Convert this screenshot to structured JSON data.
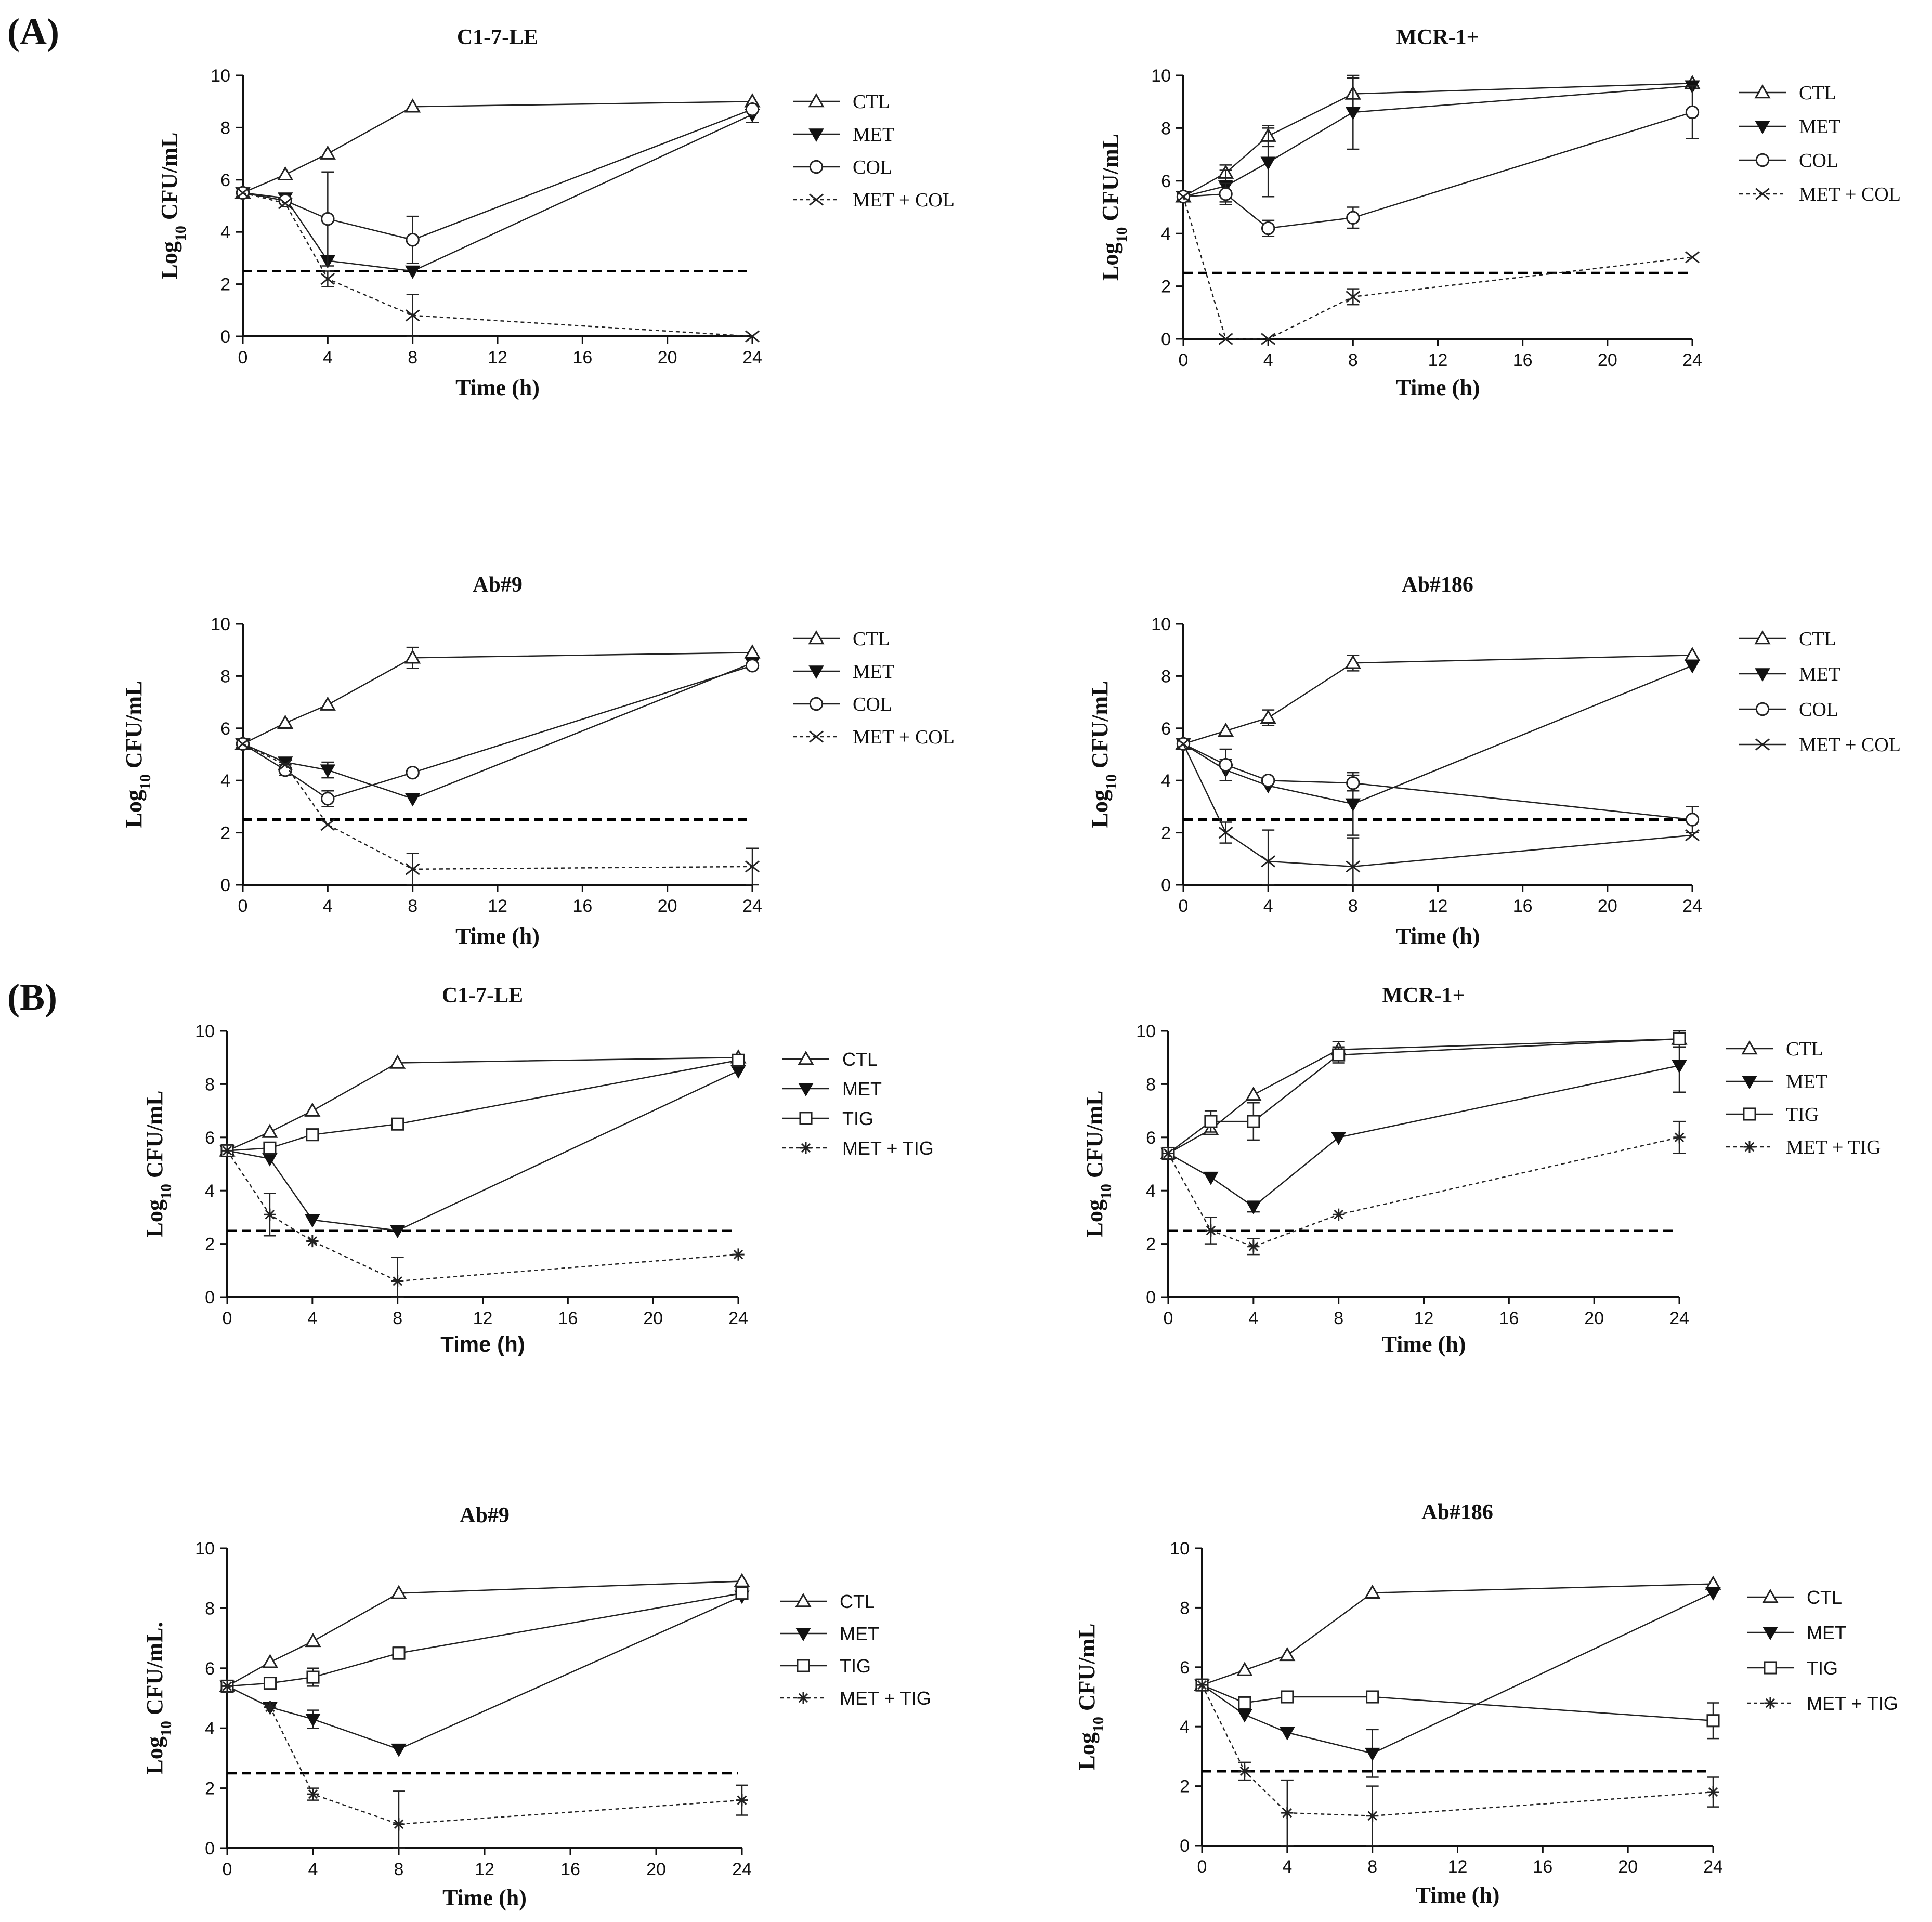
{
  "figure": {
    "panel_labels": {
      "A": "(A)",
      "B": "(B)"
    }
  },
  "chart_data": [
    {
      "type": "line",
      "panel": "A",
      "title": "C1-7-LE",
      "xlabel": "Time (h)",
      "ylabel": "Log10 CFU/mL",
      "ylabel_parts": {
        "base": "Log",
        "sub": "10",
        "rest": " CFU/mL"
      },
      "xticks": [
        0,
        4,
        8,
        12,
        16,
        20,
        24
      ],
      "yticks": [
        0,
        2,
        4,
        6,
        8,
        10
      ],
      "xlim": [
        0,
        24
      ],
      "ylim": [
        0,
        10
      ],
      "reference_line": 2.5,
      "legend_position": "right",
      "series": [
        {
          "name": "CTL",
          "marker": "triangle-open",
          "dashed": false,
          "x": [
            0,
            2,
            4,
            8,
            24
          ],
          "y": [
            5.5,
            6.2,
            7.0,
            8.8,
            9.0
          ],
          "err": [
            0,
            0,
            0,
            0,
            0
          ]
        },
        {
          "name": "MET",
          "marker": "triangle-down-filled",
          "dashed": false,
          "x": [
            0,
            2,
            4,
            8,
            24
          ],
          "y": [
            5.5,
            5.3,
            2.9,
            2.5,
            8.5
          ],
          "err": [
            0,
            0,
            0,
            0,
            0.3
          ]
        },
        {
          "name": "COL",
          "marker": "circle-open",
          "dashed": false,
          "x": [
            0,
            2,
            4,
            8,
            24
          ],
          "y": [
            5.5,
            5.2,
            4.5,
            3.7,
            8.7
          ],
          "err": [
            0,
            0,
            1.8,
            0.9,
            0
          ]
        },
        {
          "name": "MET + COL",
          "marker": "x",
          "dashed": true,
          "x": [
            0,
            2,
            4,
            8,
            24
          ],
          "y": [
            5.5,
            5.1,
            2.2,
            0.8,
            0.0
          ],
          "err": [
            0,
            0,
            0.3,
            0.8,
            0
          ]
        }
      ]
    },
    {
      "type": "line",
      "panel": "A",
      "title": "MCR-1+",
      "xlabel": "Time (h)",
      "ylabel": "Log10 CFU/mL",
      "ylabel_parts": {
        "base": "Log",
        "sub": "10",
        "rest": " CFU/mL"
      },
      "xticks": [
        0,
        4,
        8,
        12,
        16,
        20,
        24
      ],
      "yticks": [
        0,
        2,
        4,
        6,
        8,
        10
      ],
      "xlim": [
        0,
        24
      ],
      "ylim": [
        0,
        10
      ],
      "reference_line": 2.5,
      "legend_position": "right",
      "series": [
        {
          "name": "CTL",
          "marker": "triangle-open",
          "dashed": false,
          "x": [
            0,
            2,
            4,
            8,
            24
          ],
          "y": [
            5.4,
            6.3,
            7.7,
            9.3,
            9.7
          ],
          "err": [
            0,
            0.3,
            0.4,
            0.6,
            0
          ]
        },
        {
          "name": "MET",
          "marker": "triangle-down-filled",
          "dashed": false,
          "x": [
            0,
            2,
            4,
            8,
            24
          ],
          "y": [
            5.4,
            5.8,
            6.7,
            8.6,
            9.6
          ],
          "err": [
            0,
            0.6,
            1.3,
            1.4,
            0
          ]
        },
        {
          "name": "COL",
          "marker": "circle-open",
          "dashed": false,
          "x": [
            0,
            2,
            4,
            8,
            24
          ],
          "y": [
            5.4,
            5.5,
            4.2,
            4.6,
            8.6
          ],
          "err": [
            0,
            0.4,
            0.3,
            0.4,
            1.0
          ]
        },
        {
          "name": "MET + COL",
          "marker": "x",
          "dashed": true,
          "x": [
            0,
            2,
            4,
            8,
            24
          ],
          "y": [
            5.4,
            0.0,
            0.0,
            1.6,
            3.1
          ],
          "err": [
            0,
            0,
            0,
            0.3,
            0
          ]
        }
      ]
    },
    {
      "type": "line",
      "panel": "A",
      "title": "Ab#9",
      "xlabel": "Time (h)",
      "ylabel": "Log10 CFU/mL",
      "ylabel_parts": {
        "base": "Log",
        "sub": "10",
        "rest": " CFU/mL"
      },
      "xticks": [
        0,
        4,
        8,
        12,
        16,
        20,
        24
      ],
      "yticks": [
        0,
        2,
        4,
        6,
        8,
        10
      ],
      "xlim": [
        0,
        24
      ],
      "ylim": [
        0,
        10
      ],
      "reference_line": 2.5,
      "legend_position": "right",
      "series": [
        {
          "name": "CTL",
          "marker": "triangle-open",
          "dashed": false,
          "x": [
            0,
            2,
            4,
            8,
            24
          ],
          "y": [
            5.4,
            6.2,
            6.9,
            8.7,
            8.9
          ],
          "err": [
            0,
            0,
            0,
            0.4,
            0
          ]
        },
        {
          "name": "MET",
          "marker": "triangle-down-filled",
          "dashed": false,
          "x": [
            0,
            2,
            4,
            8,
            24
          ],
          "y": [
            5.4,
            4.7,
            4.4,
            3.3,
            8.5
          ],
          "err": [
            0,
            0,
            0.3,
            0,
            0
          ]
        },
        {
          "name": "COL",
          "marker": "circle-open",
          "dashed": false,
          "x": [
            0,
            2,
            4,
            8,
            24
          ],
          "y": [
            5.4,
            4.4,
            3.3,
            4.3,
            8.4
          ],
          "err": [
            0,
            0.2,
            0.3,
            0,
            0
          ]
        },
        {
          "name": "MET + COL",
          "marker": "x",
          "dashed": true,
          "x": [
            0,
            2,
            4,
            8,
            24
          ],
          "y": [
            5.4,
            4.6,
            2.3,
            0.6,
            0.7
          ],
          "err": [
            0,
            0,
            0,
            0.6,
            0.7
          ]
        }
      ]
    },
    {
      "type": "line",
      "panel": "A",
      "title": "Ab#186",
      "xlabel": "Time (h)",
      "ylabel": "Log10 CFU/mL",
      "ylabel_parts": {
        "base": "Log",
        "sub": "10",
        "rest": " CFU/mL"
      },
      "xticks": [
        0,
        4,
        8,
        12,
        16,
        20,
        24
      ],
      "yticks": [
        0,
        2,
        4,
        6,
        8,
        10
      ],
      "xlim": [
        0,
        24
      ],
      "ylim": [
        0,
        10
      ],
      "reference_line": 2.5,
      "legend_position": "right",
      "series": [
        {
          "name": "CTL",
          "marker": "triangle-open",
          "dashed": false,
          "x": [
            0,
            2,
            4,
            8,
            24
          ],
          "y": [
            5.4,
            5.9,
            6.4,
            8.5,
            8.8
          ],
          "err": [
            0,
            0,
            0.3,
            0.3,
            0
          ]
        },
        {
          "name": "MET",
          "marker": "triangle-down-filled",
          "dashed": false,
          "x": [
            0,
            2,
            4,
            8,
            24
          ],
          "y": [
            5.4,
            4.4,
            3.8,
            3.1,
            8.4
          ],
          "err": [
            0,
            0.4,
            0,
            1.2,
            0
          ]
        },
        {
          "name": "COL",
          "marker": "circle-open",
          "dashed": false,
          "x": [
            0,
            2,
            4,
            8,
            24
          ],
          "y": [
            5.4,
            4.6,
            4.0,
            3.9,
            2.5
          ],
          "err": [
            0,
            0.6,
            0,
            0.3,
            0.5
          ]
        },
        {
          "name": "MET + COL",
          "marker": "x",
          "dashed": false,
          "x": [
            0,
            2,
            4,
            8,
            24
          ],
          "y": [
            5.4,
            2.0,
            0.9,
            0.7,
            1.9
          ],
          "err": [
            0,
            0.4,
            1.2,
            1.1,
            0
          ]
        }
      ]
    },
    {
      "type": "line",
      "panel": "B",
      "title": "C1-7-LE",
      "xlabel": "Time (h)",
      "ylabel": "Log10 CFU/mL",
      "ylabel_parts": {
        "base": "Log",
        "sub": "10",
        "rest": " CFU/mL"
      },
      "xticks": [
        0,
        4,
        8,
        12,
        16,
        20,
        24
      ],
      "yticks": [
        0,
        2,
        4,
        6,
        8,
        10
      ],
      "xlim": [
        0,
        24
      ],
      "ylim": [
        0,
        10
      ],
      "reference_line": 2.5,
      "legend_position": "right",
      "series": [
        {
          "name": "CTL",
          "marker": "triangle-open",
          "dashed": false,
          "x": [
            0,
            2,
            4,
            8,
            24
          ],
          "y": [
            5.5,
            6.2,
            7.0,
            8.8,
            9.0
          ],
          "err": [
            0,
            0,
            0,
            0,
            0
          ]
        },
        {
          "name": "MET",
          "marker": "triangle-down-filled",
          "dashed": false,
          "x": [
            0,
            2,
            4,
            8,
            24
          ],
          "y": [
            5.5,
            5.2,
            2.9,
            2.5,
            8.5
          ],
          "err": [
            0,
            0,
            0,
            0,
            0
          ]
        },
        {
          "name": "TIG",
          "marker": "square-open",
          "dashed": false,
          "x": [
            0,
            2,
            4,
            8,
            24
          ],
          "y": [
            5.5,
            5.6,
            6.1,
            6.5,
            8.9
          ],
          "err": [
            0,
            0,
            0.2,
            0,
            0
          ]
        },
        {
          "name": "MET + TIG",
          "marker": "star",
          "dashed": true,
          "x": [
            0,
            2,
            4,
            8,
            24
          ],
          "y": [
            5.5,
            3.1,
            2.1,
            0.6,
            1.6
          ],
          "err": [
            0,
            0.8,
            0,
            0.9,
            0
          ]
        }
      ]
    },
    {
      "type": "line",
      "panel": "B",
      "title": "MCR-1+",
      "xlabel": "Time (h)",
      "ylabel": "Log10 CFU/mL",
      "ylabel_parts": {
        "base": "Log",
        "sub": "10",
        "rest": " CFU/mL"
      },
      "xticks": [
        0,
        4,
        8,
        12,
        16,
        20,
        24
      ],
      "yticks": [
        0,
        2,
        4,
        6,
        8,
        10
      ],
      "xlim": [
        0,
        24
      ],
      "ylim": [
        0,
        10
      ],
      "reference_line": 2.5,
      "legend_position": "right",
      "series": [
        {
          "name": "CTL",
          "marker": "triangle-open",
          "dashed": false,
          "x": [
            0,
            2,
            4,
            8,
            24
          ],
          "y": [
            5.4,
            6.3,
            7.6,
            9.3,
            9.7
          ],
          "err": [
            0,
            0,
            0,
            0.3,
            0
          ]
        },
        {
          "name": "MET",
          "marker": "triangle-down-filled",
          "dashed": false,
          "x": [
            0,
            2,
            4,
            8,
            24
          ],
          "y": [
            5.4,
            4.5,
            3.4,
            6.0,
            8.7
          ],
          "err": [
            0,
            0,
            0.2,
            0,
            1.0
          ]
        },
        {
          "name": "TIG",
          "marker": "square-open",
          "dashed": false,
          "x": [
            0,
            2,
            4,
            8,
            24
          ],
          "y": [
            5.4,
            6.6,
            6.6,
            9.1,
            9.7
          ],
          "err": [
            0,
            0.4,
            0.7,
            0.3,
            0.3
          ]
        },
        {
          "name": "MET + TIG",
          "marker": "star",
          "dashed": true,
          "x": [
            0,
            2,
            4,
            8,
            24
          ],
          "y": [
            5.4,
            2.5,
            1.9,
            3.1,
            6.0
          ],
          "err": [
            0,
            0.5,
            0.3,
            0,
            0.6
          ]
        }
      ]
    },
    {
      "type": "line",
      "panel": "B",
      "title": "Ab#9",
      "xlabel": "Time (h)",
      "ylabel": "Log10 CFU/mL.",
      "ylabel_parts": {
        "base": "Log",
        "sub": "10",
        "rest": " CFU/mL."
      },
      "xticks": [
        0,
        4,
        8,
        12,
        16,
        20,
        24
      ],
      "yticks": [
        0,
        2,
        4,
        6,
        8,
        10
      ],
      "xlim": [
        0,
        24
      ],
      "ylim": [
        0,
        10
      ],
      "reference_line": 2.5,
      "legend_position": "right",
      "series": [
        {
          "name": "CTL",
          "marker": "triangle-open",
          "dashed": false,
          "x": [
            0,
            2,
            4,
            8,
            24
          ],
          "y": [
            5.4,
            6.2,
            6.9,
            8.5,
            8.9
          ],
          "err": [
            0,
            0,
            0,
            0,
            0
          ]
        },
        {
          "name": "MET",
          "marker": "triangle-down-filled",
          "dashed": false,
          "x": [
            0,
            2,
            4,
            8,
            24
          ],
          "y": [
            5.4,
            4.7,
            4.3,
            3.3,
            8.4
          ],
          "err": [
            0,
            0,
            0.3,
            0,
            0
          ]
        },
        {
          "name": "TIG",
          "marker": "square-open",
          "dashed": false,
          "x": [
            0,
            2,
            4,
            8,
            24
          ],
          "y": [
            5.4,
            5.5,
            5.7,
            6.5,
            8.5
          ],
          "err": [
            0,
            0,
            0.3,
            0.2,
            0
          ]
        },
        {
          "name": "MET + TIG",
          "marker": "star",
          "dashed": true,
          "x": [
            0,
            2,
            4,
            8,
            24
          ],
          "y": [
            5.4,
            4.7,
            1.8,
            0.8,
            1.6
          ],
          "err": [
            0,
            0,
            0.2,
            1.1,
            0.5
          ]
        }
      ]
    },
    {
      "type": "line",
      "panel": "B",
      "title": "Ab#186",
      "xlabel": "Time (h)",
      "ylabel": "Log10 CFU/mL",
      "ylabel_parts": {
        "base": "Log",
        "sub": "10",
        "rest": " CFU/mL"
      },
      "xticks": [
        0,
        4,
        8,
        12,
        16,
        20,
        24
      ],
      "yticks": [
        0,
        2,
        4,
        6,
        8,
        10
      ],
      "xlim": [
        0,
        24
      ],
      "ylim": [
        0,
        10
      ],
      "reference_line": 2.5,
      "legend_position": "right",
      "series": [
        {
          "name": "CTL",
          "marker": "triangle-open",
          "dashed": false,
          "x": [
            0,
            2,
            4,
            8,
            24
          ],
          "y": [
            5.4,
            5.9,
            6.4,
            8.5,
            8.8
          ],
          "err": [
            0,
            0,
            0,
            0,
            0
          ]
        },
        {
          "name": "MET",
          "marker": "triangle-down-filled",
          "dashed": false,
          "x": [
            0,
            2,
            4,
            8,
            24
          ],
          "y": [
            5.4,
            4.4,
            3.8,
            3.1,
            8.5
          ],
          "err": [
            0,
            0,
            0,
            0.8,
            0
          ]
        },
        {
          "name": "TIG",
          "marker": "square-open",
          "dashed": false,
          "x": [
            0,
            2,
            4,
            8,
            24
          ],
          "y": [
            5.4,
            4.8,
            5.0,
            5.0,
            4.2
          ],
          "err": [
            0,
            0,
            0,
            0,
            0.6
          ]
        },
        {
          "name": "MET + TIG",
          "marker": "star",
          "dashed": true,
          "x": [
            0,
            2,
            4,
            8,
            24
          ],
          "y": [
            5.4,
            2.5,
            1.1,
            1.0,
            1.8
          ],
          "err": [
            0,
            0.3,
            1.1,
            1.0,
            0.5
          ]
        }
      ]
    }
  ]
}
